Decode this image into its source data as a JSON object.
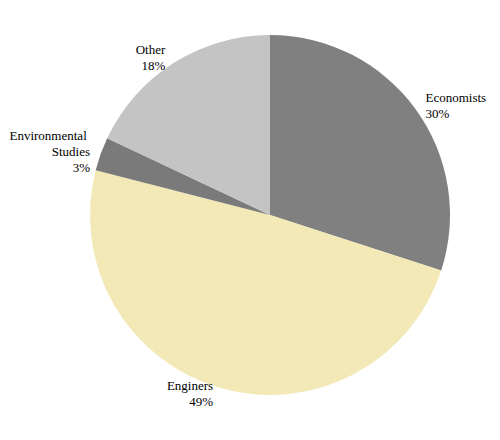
{
  "chart_data": {
    "type": "pie",
    "categories": [
      "Economists",
      "Enginers",
      "Environmental Studies",
      "Other"
    ],
    "values": [
      30,
      49,
      3,
      18
    ],
    "value_labels": [
      "30%",
      "49%",
      "3%",
      "18%"
    ],
    "colors": [
      "#808080",
      "#f2e9b6",
      "#7a7a7a",
      "#c4c4c4"
    ],
    "data_labels": true,
    "legend": false
  }
}
